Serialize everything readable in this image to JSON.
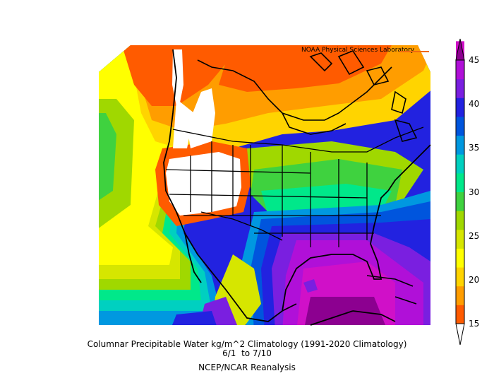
{
  "map": {
    "credit": "NOAA Physical Sciences Laboratory",
    "title_line1": "Columnar Precipitable Water kg/m^2 Climatology (1991-2020 Climatology)",
    "title_line2": "6/1  to 7/10",
    "source": "NCEP/NCAR Reanalysis",
    "region": "North America",
    "colorbar": {
      "ticks": [
        "15",
        "20",
        "25",
        "30",
        "35",
        "40",
        "45"
      ],
      "colors": [
        "#ff5b00",
        "#ff9d00",
        "#ffd400",
        "#ffff00",
        "#d6e600",
        "#a0d800",
        "#3fd23f",
        "#00e88a",
        "#00d0c0",
        "#0098e0",
        "#0055dd",
        "#2222e0",
        "#7a1fe0",
        "#b010d8",
        "#d010c8",
        "#8c0090"
      ]
    }
  }
}
